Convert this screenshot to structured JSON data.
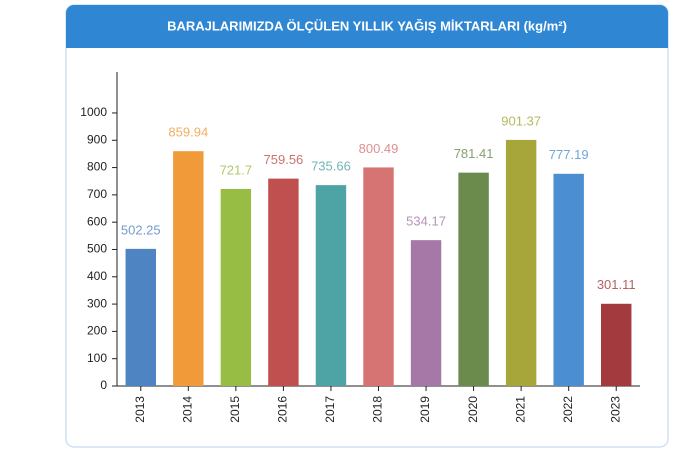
{
  "chart_data": {
    "type": "bar",
    "title": "BARAJLARIMIZDA ÖLÇÜLEN YILLIK YAĞIŞ MİKTARLARI (kg/m²)",
    "categories": [
      "2013",
      "2014",
      "2015",
      "2016",
      "2017",
      "2018",
      "2019",
      "2020",
      "2021",
      "2022",
      "2023"
    ],
    "values": [
      502.25,
      859.94,
      721.7,
      759.56,
      735.66,
      800.49,
      534.17,
      781.41,
      901.37,
      777.19,
      301.11
    ],
    "colors": [
      "#4f84c2",
      "#f09a3a",
      "#98bd45",
      "#c0504f",
      "#4ea3a5",
      "#d67474",
      "#a578a8",
      "#6a8b4b",
      "#a6a63a",
      "#4b8fd2",
      "#a23a3e"
    ],
    "ylim": [
      0,
      1150
    ],
    "yticks": [
      0,
      100,
      200,
      300,
      400,
      500,
      600,
      700,
      800,
      900,
      1000
    ],
    "grid": false
  }
}
